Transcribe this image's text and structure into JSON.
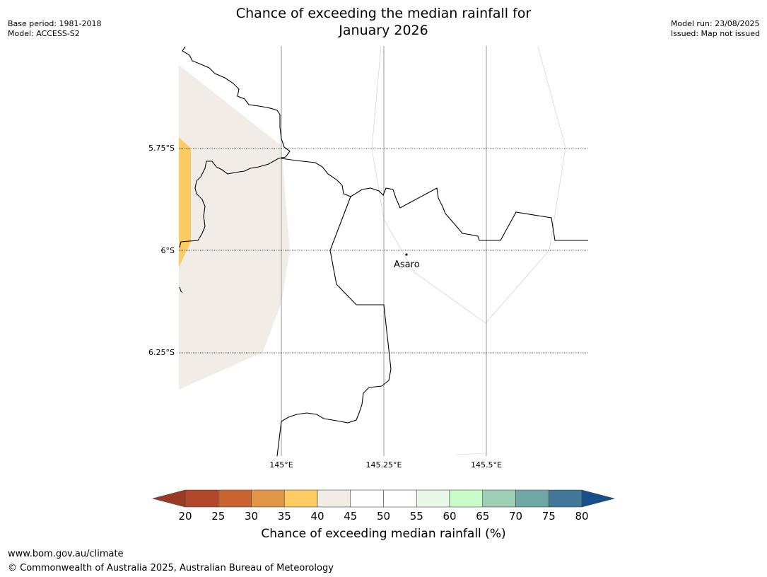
{
  "header": {
    "title_line1": "Chance of exceeding the median rainfall for",
    "title_line2": "January 2026",
    "base_period": "Base period: 1981-2018",
    "model": "Model: ACCESS-S2",
    "model_run": "Model run: 23/08/2025",
    "issued": "Issued: Map not issued"
  },
  "map": {
    "lat_labels": [
      "5.75°S",
      "6°S",
      "6.25°S"
    ],
    "lon_labels": [
      "145°E",
      "145.25°E",
      "145.5°E"
    ],
    "place_label": "Asaro",
    "colors": {
      "band_35_40": "#fecb62",
      "band_40_45": "#f1ece6",
      "coastline": "#000000",
      "gridline": "#999999"
    }
  },
  "colorbar": {
    "title": "Chance of exceeding median rainfall (%)",
    "ticks": [
      "20",
      "25",
      "30",
      "35",
      "40",
      "45",
      "50",
      "55",
      "60",
      "65",
      "70",
      "75",
      "80"
    ],
    "under_color": "#9b3a24",
    "over_color": "#174f8a",
    "colors": [
      "#b2472a",
      "#cb6330",
      "#e29447",
      "#fecb62",
      "#f1ece6",
      "#ffffff",
      "#ffffff",
      "#e8f7e8",
      "#c8fdc8",
      "#9dcfb6",
      "#6fa6a6",
      "#417898"
    ]
  },
  "footer": {
    "website": "www.bom.gov.au/climate",
    "copyright": "© Commonwealth of Australia 2025, Australian Bureau of Meteorology"
  }
}
